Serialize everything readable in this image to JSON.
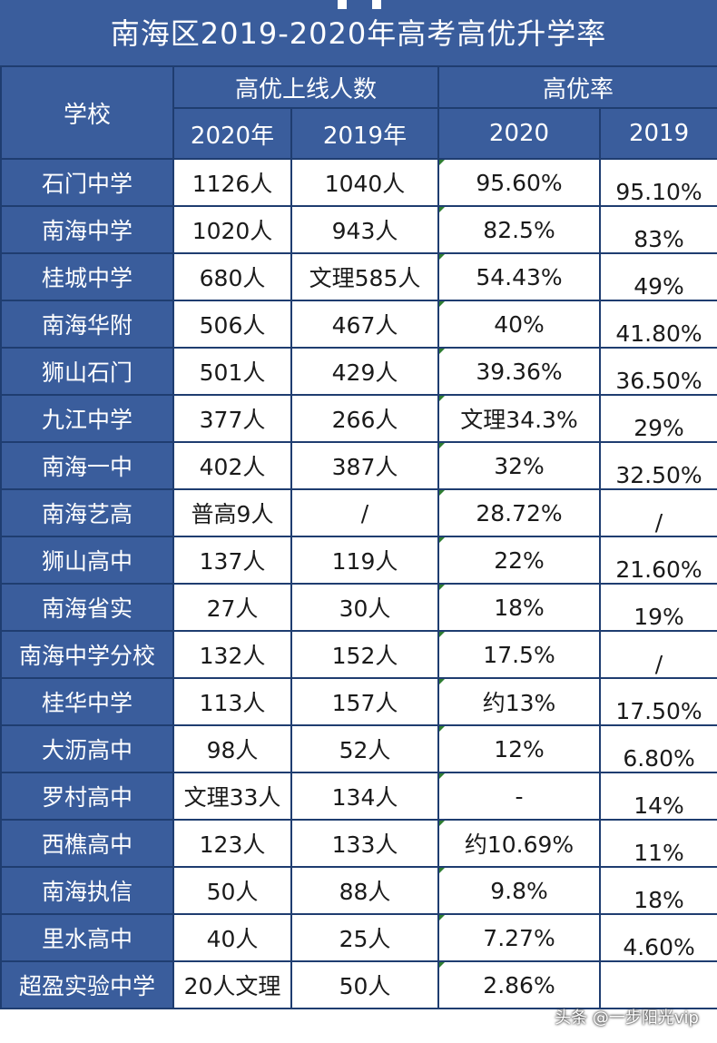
{
  "title": "南海区2019-2020年高考高优升学率",
  "header": {
    "school": "学校",
    "count_group": "高优上线人数",
    "rate_group": "高优率",
    "count_2020": "2020年",
    "count_2019": "2019年",
    "rate_2020": "2020",
    "rate_2019": "2019"
  },
  "rows": [
    {
      "school": "石门中学",
      "c2020": "1126人",
      "c2019": "1040人",
      "r2020": "95.60%",
      "r2019": "95.10%"
    },
    {
      "school": "南海中学",
      "c2020": "1020人",
      "c2019": "943人",
      "r2020": "82.5%",
      "r2019": "83%"
    },
    {
      "school": "桂城中学",
      "c2020": "680人",
      "c2019": "文理585人",
      "r2020": "54.43%",
      "r2019": "49%"
    },
    {
      "school": "南海华附",
      "c2020": "506人",
      "c2019": "467人",
      "r2020": "40%",
      "r2019": "41.80%"
    },
    {
      "school": "狮山石门",
      "c2020": "501人",
      "c2019": "429人",
      "r2020": "39.36%",
      "r2019": "36.50%"
    },
    {
      "school": "九江中学",
      "c2020": "377人",
      "c2019": "266人",
      "r2020": "文理34.3%",
      "r2019": "29%"
    },
    {
      "school": "南海一中",
      "c2020": "402人",
      "c2019": "387人",
      "r2020": "32%",
      "r2019": "32.50%"
    },
    {
      "school": "南海艺高",
      "c2020": "普高9人",
      "c2019": "/",
      "r2020": "28.72%",
      "r2019": "/"
    },
    {
      "school": "狮山高中",
      "c2020": "137人",
      "c2019": "119人",
      "r2020": "22%",
      "r2019": "21.60%"
    },
    {
      "school": "南海省实",
      "c2020": "27人",
      "c2019": "30人",
      "r2020": "18%",
      "r2019": "19%"
    },
    {
      "school": "南海中学分校",
      "c2020": "132人",
      "c2019": "152人",
      "r2020": "17.5%",
      "r2019": "/"
    },
    {
      "school": "桂华中学",
      "c2020": "113人",
      "c2019": "157人",
      "r2020": "约13%",
      "r2019": "17.50%"
    },
    {
      "school": "大沥高中",
      "c2020": "98人",
      "c2019": "52人",
      "r2020": "12%",
      "r2019": "6.80%"
    },
    {
      "school": "罗村高中",
      "c2020": "文理33人",
      "c2019": "134人",
      "r2020": "-",
      "r2019": "14%"
    },
    {
      "school": "西樵高中",
      "c2020": "123人",
      "c2019": "133人",
      "r2020": "约10.69%",
      "r2019": "11%"
    },
    {
      "school": "南海执信",
      "c2020": "50人",
      "c2019": "88人",
      "r2020": "9.8%",
      "r2019": "18%"
    },
    {
      "school": "里水高中",
      "c2020": "40人",
      "c2019": "25人",
      "r2020": "7.27%",
      "r2019": "4.60%"
    },
    {
      "school": "超盈实验中学",
      "c2020": "20人文理",
      "c2019": "50人",
      "r2020": "2.86%",
      "r2019": ""
    }
  ],
  "watermark": "头条 @一步阳光vip",
  "colors": {
    "header_bg": "#3a5d9c",
    "border": "#1f3d70",
    "cell_bg": "#ffffff"
  }
}
